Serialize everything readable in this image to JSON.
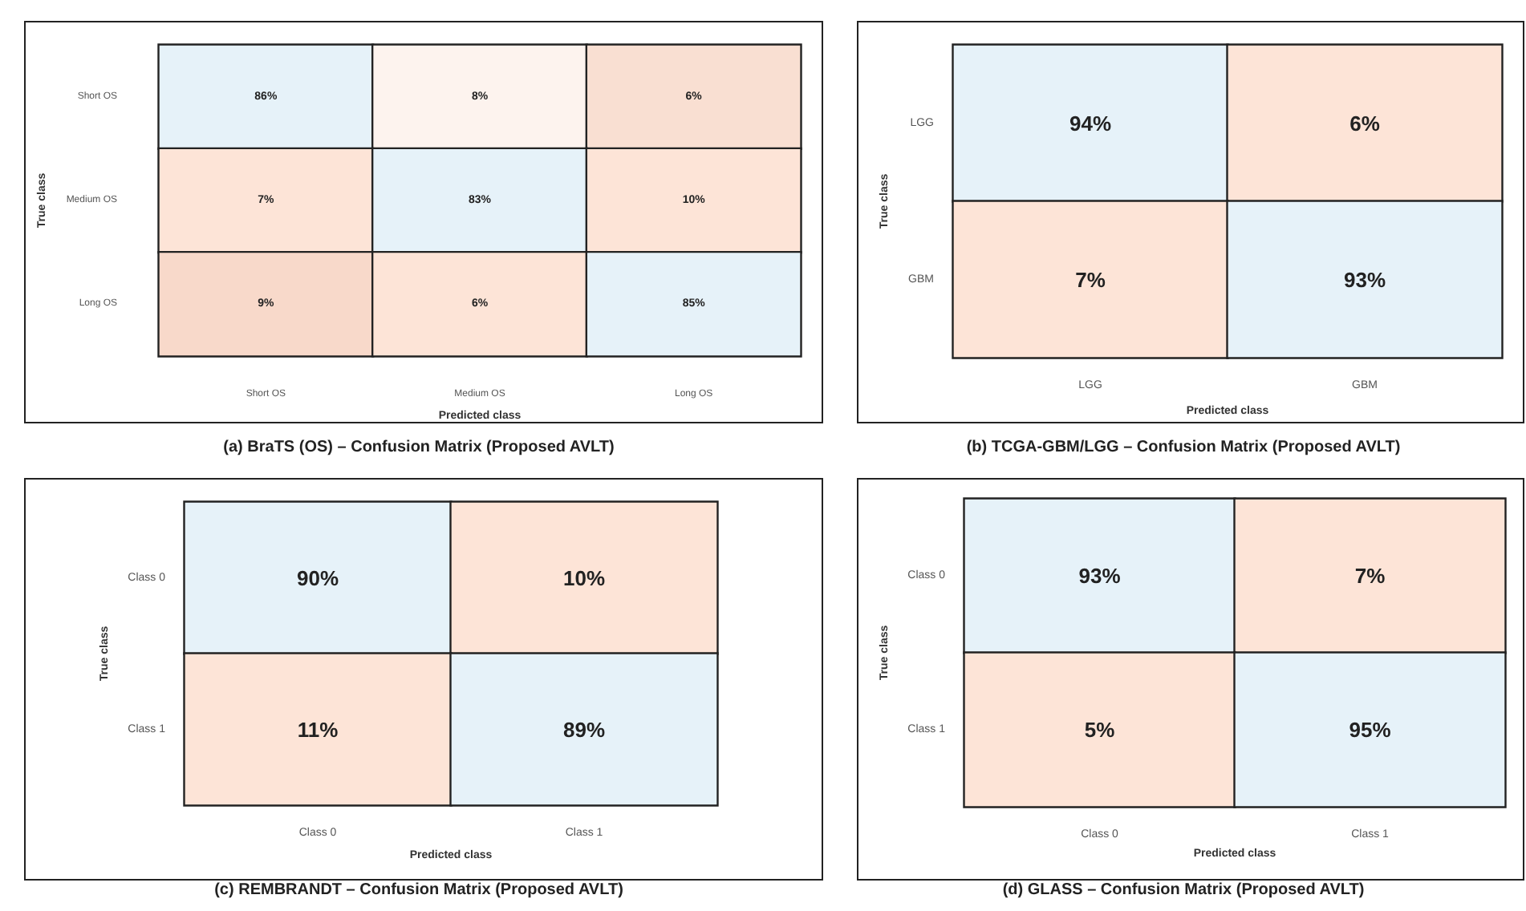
{
  "chart_data": [
    {
      "type": "heatmap",
      "title": "(a) BraTS (OS) – Confusion Matrix (Proposed AVLT)",
      "xlabel": "Predicted class",
      "ylabel": "True class",
      "categories": [
        "Short OS",
        "Medium OS",
        "Long OS"
      ],
      "y_categories": [
        "Short OS",
        "Medium OS",
        "Long OS"
      ],
      "cells": [
        [
          86,
          8,
          6
        ],
        [
          7,
          83,
          10
        ],
        [
          9,
          6,
          85
        ]
      ],
      "cell_labels": [
        [
          "86%",
          "8%",
          "6%"
        ],
        [
          "7%",
          "83%",
          "10%"
        ],
        [
          "9%",
          "6%",
          "85%"
        ]
      ],
      "colors": [
        [
          "#e6f2f9",
          "#fdf3ee",
          "#f9dfd2"
        ],
        [
          "#fde4d7",
          "#e6f2f9",
          "#fde4d7"
        ],
        [
          "#f8d9ca",
          "#fde4d7",
          "#e6f2f9"
        ]
      ]
    },
    {
      "type": "heatmap",
      "title": "(b) TCGA-GBM/LGG – Confusion Matrix (Proposed AVLT)",
      "xlabel": "Predicted class",
      "ylabel": "True class",
      "categories": [
        "LGG",
        "GBM"
      ],
      "y_categories": [
        "LGG",
        "GBM"
      ],
      "cells": [
        [
          94,
          6
        ],
        [
          7,
          93
        ]
      ],
      "cell_labels": [
        [
          "94%",
          "6%"
        ],
        [
          "7%",
          "93%"
        ]
      ],
      "colors": [
        [
          "#e6f2f9",
          "#fde4d7"
        ],
        [
          "#fde4d7",
          "#e6f2f9"
        ]
      ]
    },
    {
      "type": "heatmap",
      "title": "(c) REMBRANDT – Confusion Matrix (Proposed AVLT)",
      "xlabel": "Predicted class",
      "ylabel": "True class",
      "categories": [
        "Class 0",
        "Class 1"
      ],
      "y_categories": [
        "Class 0",
        "Class 1"
      ],
      "cells": [
        [
          90,
          10
        ],
        [
          11,
          89
        ]
      ],
      "cell_labels": [
        [
          "90%",
          "10%"
        ],
        [
          "11%",
          "89%"
        ]
      ],
      "colors": [
        [
          "#e6f2f9",
          "#fde4d7"
        ],
        [
          "#fde4d7",
          "#e6f2f9"
        ]
      ]
    },
    {
      "type": "heatmap",
      "title": "(d) GLASS – Confusion Matrix (Proposed AVLT)",
      "xlabel": "Predicted class",
      "ylabel": "True class",
      "categories": [
        "Class 0",
        "Class 1"
      ],
      "y_categories": [
        "Class 0",
        "Class 1"
      ],
      "cells": [
        [
          93,
          7
        ],
        [
          5,
          95
        ]
      ],
      "cell_labels": [
        [
          "93%",
          "7%"
        ],
        [
          "5%",
          "95%"
        ]
      ],
      "colors": [
        [
          "#e6f2f9",
          "#fde4d7"
        ],
        [
          "#fde4d7",
          "#e6f2f9"
        ]
      ]
    }
  ]
}
